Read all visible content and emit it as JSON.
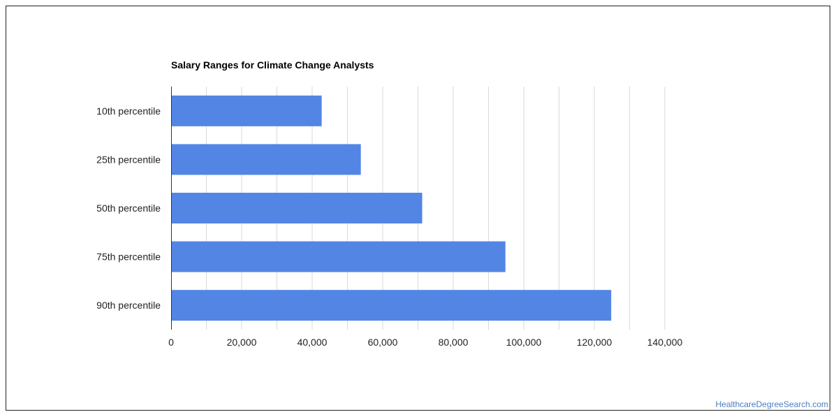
{
  "chart_data": {
    "type": "bar",
    "orientation": "horizontal",
    "title": "Salary Ranges for Climate Change Analysts",
    "xlabel": "",
    "ylabel": "",
    "categories": [
      "10th percentile",
      "25th percentile",
      "50th percentile",
      "75th percentile",
      "90th percentile"
    ],
    "values": [
      42700,
      53800,
      71200,
      94800,
      124800
    ],
    "xlim": [
      0,
      140000
    ],
    "x_ticks": [
      0,
      20000,
      40000,
      60000,
      80000,
      100000,
      120000,
      140000
    ],
    "x_tick_labels": [
      "0",
      "20,000",
      "40,000",
      "60,000",
      "80,000",
      "100,000",
      "120,000",
      "140,000"
    ],
    "grid": true,
    "legend": "none",
    "bar_color": "#5385e4"
  },
  "footer": {
    "source": "HealthcareDegreeSearch.com"
  },
  "colors": {
    "grid": "#d9d9d9",
    "axis": "#333333",
    "label": "#222222",
    "link": "#4a7ec2"
  }
}
